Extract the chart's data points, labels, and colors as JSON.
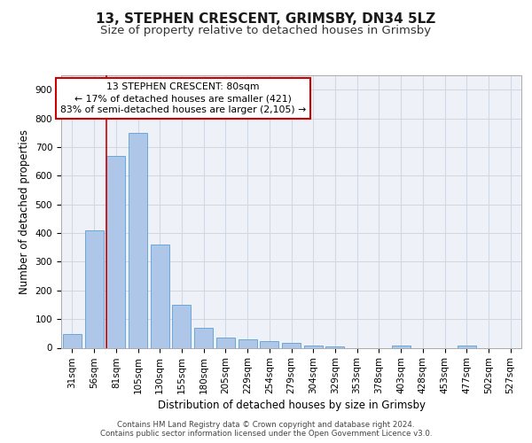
{
  "title1": "13, STEPHEN CRESCENT, GRIMSBY, DN34 5LZ",
  "title2": "Size of property relative to detached houses in Grimsby",
  "xlabel": "Distribution of detached houses by size in Grimsby",
  "ylabel": "Number of detached properties",
  "categories": [
    "31sqm",
    "56sqm",
    "81sqm",
    "105sqm",
    "130sqm",
    "155sqm",
    "180sqm",
    "205sqm",
    "229sqm",
    "254sqm",
    "279sqm",
    "304sqm",
    "329sqm",
    "353sqm",
    "378sqm",
    "403sqm",
    "428sqm",
    "453sqm",
    "477sqm",
    "502sqm",
    "527sqm"
  ],
  "values": [
    48,
    410,
    670,
    750,
    360,
    150,
    70,
    35,
    30,
    22,
    18,
    7,
    5,
    0,
    0,
    8,
    0,
    0,
    8,
    0,
    0
  ],
  "bar_color": "#aec6e8",
  "bar_edge_color": "#5a9fd4",
  "grid_color": "#d0d8e8",
  "bg_color": "#eef2f8",
  "vline_color": "#cc0000",
  "annotation_text": "13 STEPHEN CRESCENT: 80sqm\n← 17% of detached houses are smaller (421)\n83% of semi-detached houses are larger (2,105) →",
  "annotation_box_color": "#cc0000",
  "ylim": [
    0,
    950
  ],
  "yticks": [
    0,
    100,
    200,
    300,
    400,
    500,
    600,
    700,
    800,
    900
  ],
  "footer": "Contains HM Land Registry data © Crown copyright and database right 2024.\nContains public sector information licensed under the Open Government Licence v3.0.",
  "title1_fontsize": 11,
  "title2_fontsize": 9.5,
  "tick_fontsize": 7.5,
  "ylabel_fontsize": 8.5,
  "xlabel_fontsize": 8.5,
  "footer_fontsize": 6.2
}
